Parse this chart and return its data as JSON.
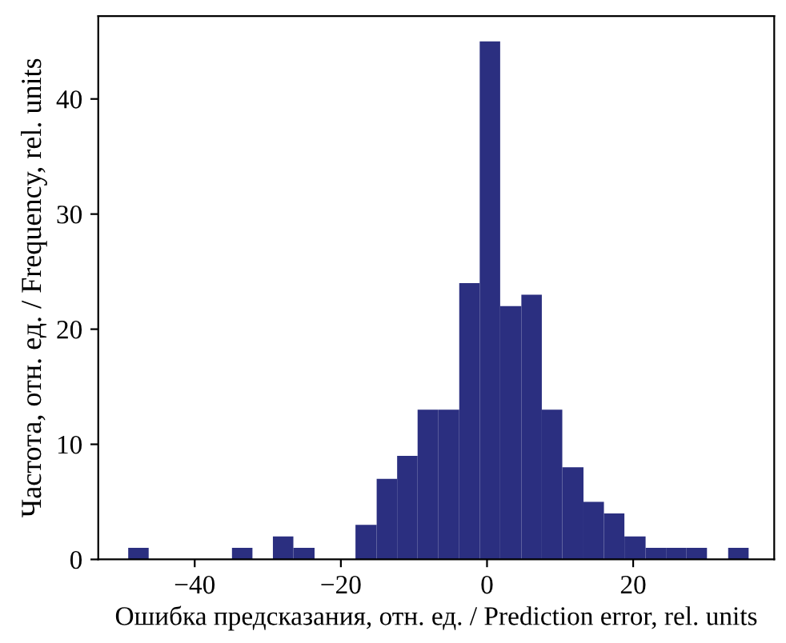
{
  "chart_data": {
    "type": "histogram",
    "xlabel": "Ошибка предсказания, отн. ед. / Prediction error, rel. units",
    "ylabel": "Частота, отн. ед. / Frequency, rel. units",
    "bins": [
      -49.1,
      -46.3,
      -34.9,
      -32.1,
      -29.3,
      -26.5,
      -23.6,
      -18.0,
      -15.1,
      -12.3,
      -9.5,
      -6.7,
      -3.8,
      -1.0,
      1.8,
      4.7,
      7.5,
      10.3,
      13.2,
      16.0,
      18.8,
      21.7,
      24.5,
      27.3,
      30.1,
      33.0,
      35.8
    ],
    "values": [
      1,
      0,
      1,
      0,
      2,
      1,
      0,
      3,
      7,
      9,
      13,
      13,
      24,
      45,
      22,
      23,
      13,
      8,
      5,
      4,
      2,
      1,
      1,
      1,
      0,
      1
    ],
    "color": "#2b2f80",
    "xlim": [
      -53.2,
      39.3
    ],
    "ylim": [
      0,
      47.2
    ],
    "xticks": [
      -40,
      -20,
      0,
      20
    ],
    "yticks": [
      0,
      10,
      20,
      30,
      40
    ],
    "grid": false
  }
}
